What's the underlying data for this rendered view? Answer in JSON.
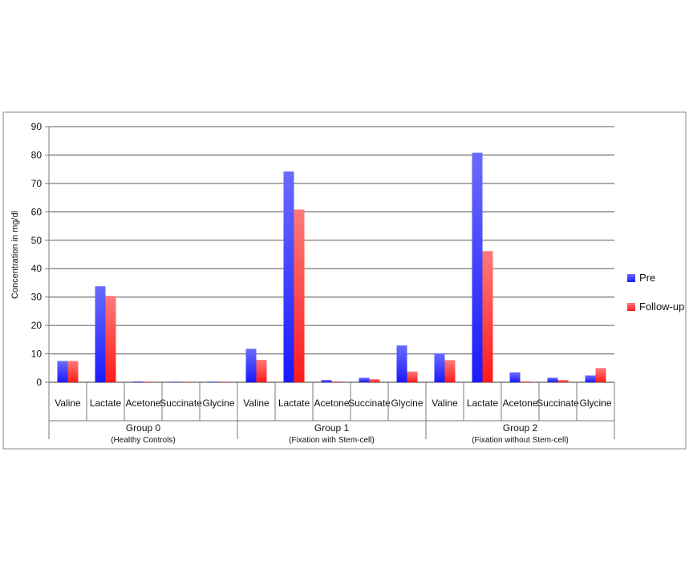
{
  "chart_data": {
    "type": "bar",
    "ylabel": "Concentration in mg/dl",
    "ylim": [
      0,
      90
    ],
    "yticks": [
      0,
      10,
      20,
      30,
      40,
      50,
      60,
      70,
      80,
      90
    ],
    "grid": true,
    "legend_position": "right",
    "groups": [
      {
        "label": "Group 0",
        "sublabel": "(Healthy Controls)"
      },
      {
        "label": "Group 1",
        "sublabel": "(Fixation with Stem-cell)"
      },
      {
        "label": "Group 2",
        "sublabel": "(Fixation without Stem-cell)"
      }
    ],
    "categories": [
      "Valine",
      "Lactate",
      "Acetone",
      "Succinate",
      "Glycine"
    ],
    "series": [
      {
        "name": "Pre",
        "color": "#3333ff",
        "values": [
          [
            7.5,
            33.8,
            0.3,
            0.1,
            0.2
          ],
          [
            11.8,
            74.2,
            0.8,
            1.6,
            13.0
          ],
          [
            10.2,
            80.8,
            3.5,
            1.6,
            2.4
          ]
        ]
      },
      {
        "name": "Follow-up",
        "color": "#ff3333",
        "values": [
          [
            7.5,
            30.4,
            0.2,
            0.1,
            0.2
          ],
          [
            7.9,
            60.8,
            0.3,
            1.1,
            3.8
          ],
          [
            7.8,
            46.2,
            0.3,
            0.8,
            5.0
          ]
        ]
      }
    ]
  }
}
